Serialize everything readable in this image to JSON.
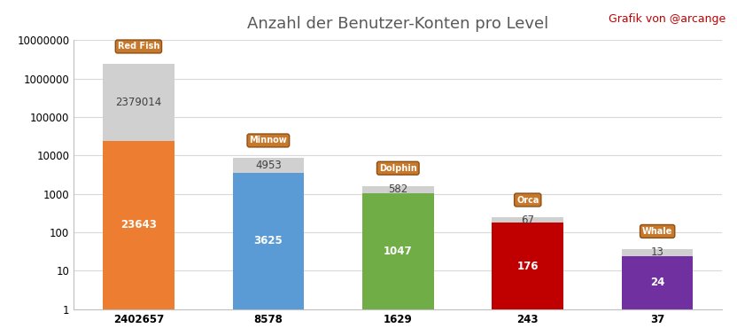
{
  "chart_data": {
    "type": "bar",
    "title": "Anzahl der Benutzer-Konten pro Level",
    "annotation": "Grafik von @arcange",
    "categories": [
      "2402657",
      "8578",
      "1629",
      "243",
      "37"
    ],
    "badges": [
      "Red Fish",
      "Minnow",
      "Dolphin",
      "Orca",
      "Whale"
    ],
    "stacked": true,
    "log": "y",
    "grid": true,
    "data_labels": true,
    "series": [
      {
        "values": [
          23643,
          3625,
          1047,
          176,
          24
        ],
        "colors": [
          "#ed7d31",
          "#5b9bd5",
          "#70ad47",
          "#c00000",
          "#7030a0"
        ]
      },
      {
        "values": [
          2379014,
          4953,
          582,
          67,
          13
        ],
        "color": "#d0d0d0"
      }
    ],
    "ylim": [
      1,
      10000000
    ],
    "yticks": [
      1,
      10,
      100,
      1000,
      10000,
      100000,
      1000000,
      10000000
    ]
  }
}
